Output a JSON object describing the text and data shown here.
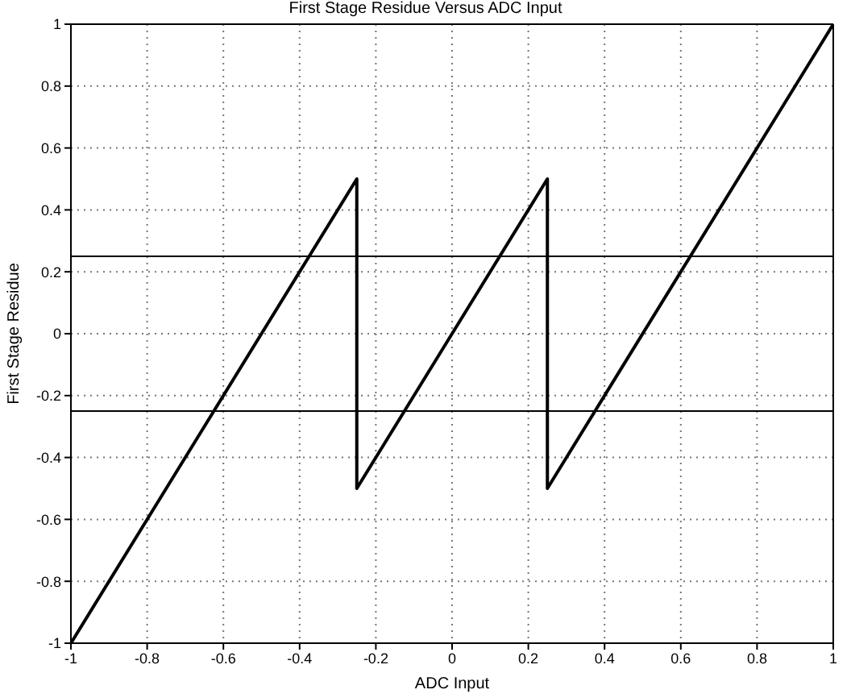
{
  "chart_data": {
    "type": "line",
    "title": "First Stage Residue Versus ADC Input",
    "xlabel": "ADC Input",
    "ylabel": "First Stage Residue",
    "series": [
      {
        "color": "#000000",
        "x": [
          -1,
          -0.25,
          -0.25,
          0.25,
          0.25,
          1
        ],
        "values": [
          -1,
          0.5,
          -0.5,
          0.5,
          -0.5,
          1
        ]
      }
    ],
    "xlim": [
      -1,
      1
    ],
    "ylim": [
      -1,
      1
    ],
    "xticks": [
      -1,
      -0.8,
      -0.6,
      -0.4,
      -0.2,
      0,
      0.2,
      0.4,
      0.6,
      0.8,
      1
    ],
    "yticks": [
      -1,
      -0.8,
      -0.6,
      -0.4,
      -0.2,
      0,
      0.2,
      0.4,
      0.6,
      0.8,
      1
    ],
    "ref_lines": [
      {
        "axis": "y",
        "value": 0.25,
        "color": "#000000"
      },
      {
        "axis": "y",
        "value": -0.25,
        "color": "#000000"
      }
    ],
    "grid": true,
    "line_style": "solid",
    "marker": "none"
  }
}
